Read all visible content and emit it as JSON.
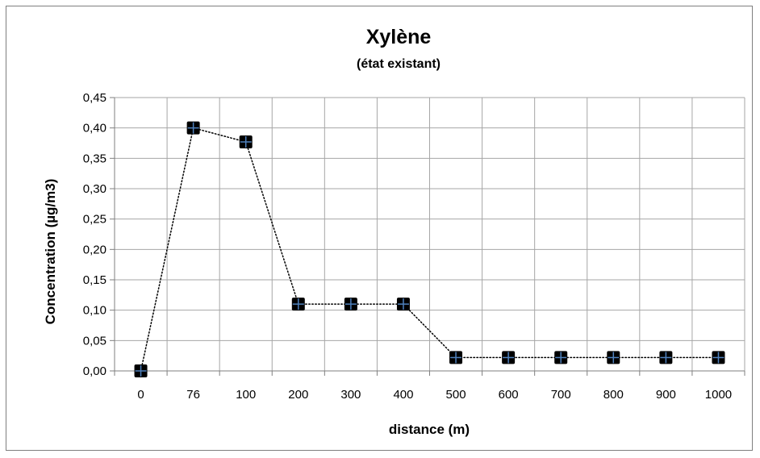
{
  "chart_data": {
    "type": "line",
    "title": "Xylène",
    "subtitle": "(état existant)",
    "xlabel": "distance (m)",
    "ylabel": "Concentration (µg/m3)",
    "categories": [
      "0",
      "76",
      "100",
      "200",
      "300",
      "400",
      "500",
      "600",
      "700",
      "800",
      "900",
      "1000"
    ],
    "series": [
      {
        "values": [
          0.0,
          0.4,
          0.377,
          0.11,
          0.11,
          0.11,
          0.022,
          0.022,
          0.022,
          0.022,
          0.022,
          0.022
        ]
      }
    ],
    "ylim": [
      0,
      0.45
    ],
    "ytick_step": 0.05,
    "yticks": [
      "0,00",
      "0,05",
      "0,10",
      "0,15",
      "0,20",
      "0,25",
      "0,30",
      "0,35",
      "0,40",
      "0,45"
    ],
    "grid": true,
    "line_style": "dotted",
    "marker": "square-with-cross",
    "marker_color": "#000000",
    "marker_cross_color": "#4f81bd",
    "line_color": "#000000",
    "legend": "none"
  }
}
